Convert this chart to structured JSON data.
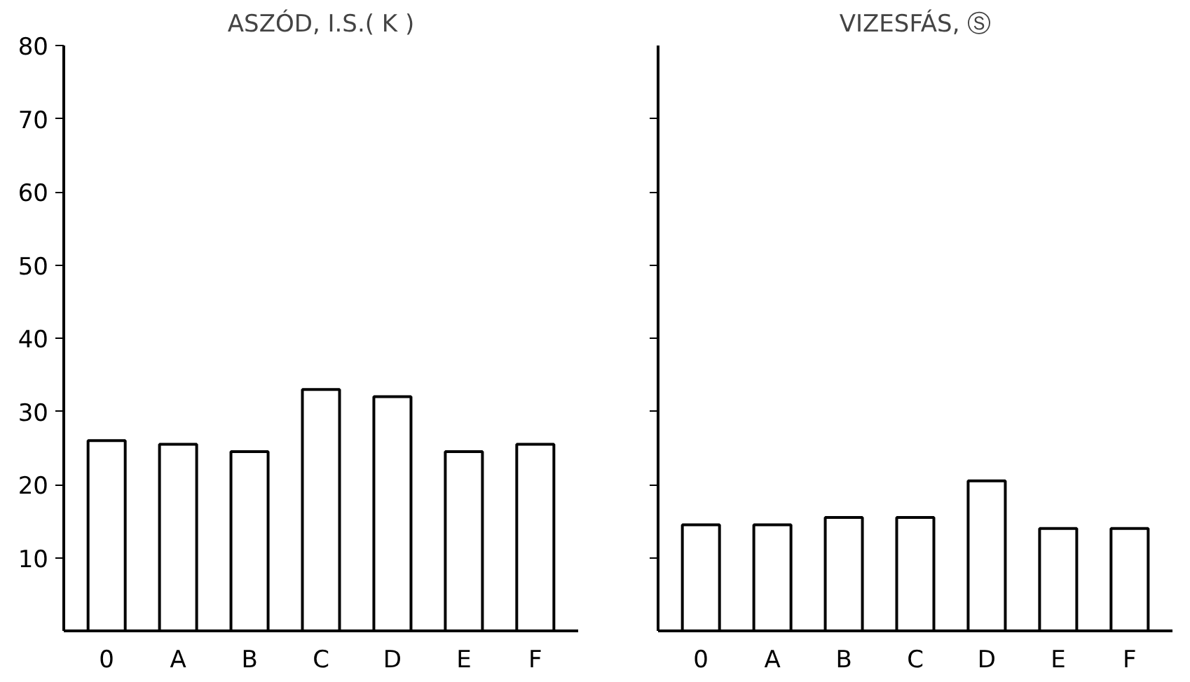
{
  "chart_data": [
    {
      "type": "bar",
      "title": "ASZÓD, I.S.( K )",
      "categories": [
        "0",
        "A",
        "B",
        "C",
        "D",
        "E",
        "F"
      ],
      "values": [
        26,
        25.5,
        24.5,
        33,
        32,
        24.5,
        25.5
      ],
      "color": "#ffffff",
      "ylim": [
        0,
        80
      ],
      "yticks": [
        10,
        20,
        30,
        40,
        50,
        60,
        70,
        80
      ],
      "grid": false
    },
    {
      "type": "bar",
      "title": "VIZESFÁS, Ⓢ",
      "categories": [
        "0",
        "A",
        "B",
        "C",
        "D",
        "E",
        "F"
      ],
      "values": [
        14.5,
        14.5,
        15.5,
        15.5,
        20.5,
        14,
        14
      ],
      "color": "#ffffff",
      "ylim": [
        0,
        80
      ],
      "yticks": [
        {
          "value": 10,
          "label": null
        },
        {
          "value": 20,
          "label": null
        },
        {
          "value": 30,
          "label": null
        },
        {
          "value": 40,
          "label": null
        },
        {
          "value": 50,
          "label": null
        },
        {
          "value": 60,
          "label": null
        },
        {
          "value": 70,
          "label": null
        }
      ],
      "tick_labels": "x",
      "grid": false
    }
  ]
}
